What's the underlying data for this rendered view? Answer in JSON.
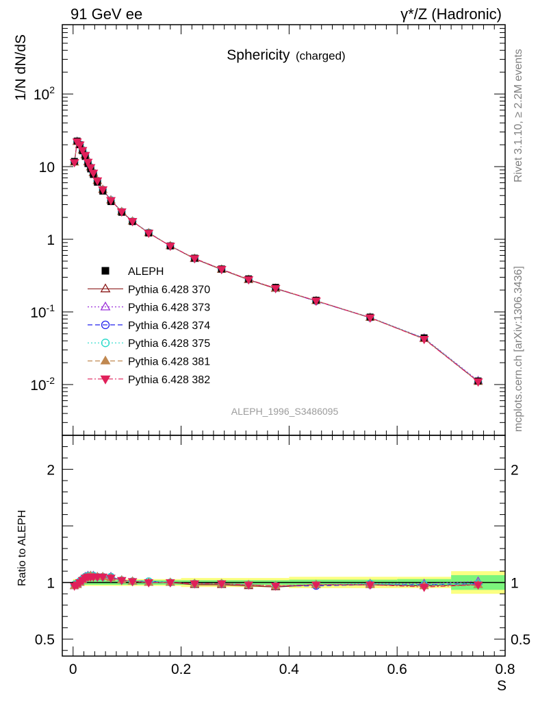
{
  "header": {
    "left": "91 GeV ee",
    "right": "γ*/Z (Hadronic)",
    "side_top": "Rivet 3.1.10, ≥ 2.2M events",
    "side_bottom": "mcplots.cern.ch [arXiv:1306.3436]"
  },
  "chart_data": {
    "type": "line",
    "title": "Sphericity",
    "title_suffix": "(charged)",
    "watermark": "ALEPH_1996_S3486095",
    "xlabel": "S",
    "ylabel": "1/N dN/dS",
    "ratio_ylabel": "Ratio to ALEPH",
    "xlim": [
      -0.02,
      0.8
    ],
    "ylim_log": [
      0.002,
      900
    ],
    "ratio_ylim": [
      0.35,
      2.3
    ],
    "yscale": "log",
    "x_ticks": [
      "0",
      "0.2",
      "0.4",
      "0.6",
      "0.8"
    ],
    "y_ticks": [
      {
        "base": "10",
        "exp": "-2"
      },
      {
        "base": "10",
        "exp": "-1"
      },
      {
        "base": "1",
        "exp": ""
      },
      {
        "base": "10",
        "exp": ""
      },
      {
        "base": "10",
        "exp": "2"
      }
    ],
    "ratio_ticks": [
      "0.5",
      "1",
      "2"
    ],
    "legend_position": "left",
    "x": [
      0.0025,
      0.0075,
      0.0125,
      0.0175,
      0.0225,
      0.0275,
      0.0325,
      0.0375,
      0.045,
      0.055,
      0.07,
      0.09,
      0.11,
      0.14,
      0.18,
      0.225,
      0.275,
      0.325,
      0.375,
      0.45,
      0.55,
      0.65,
      0.75
    ],
    "data": {
      "name": "ALEPH",
      "values": [
        11.8,
        22.5,
        20.0,
        16.5,
        13.8,
        11.0,
        9.3,
        7.8,
        6.1,
        4.6,
        3.3,
        2.35,
        1.75,
        1.22,
        0.81,
        0.55,
        0.39,
        0.285,
        0.218,
        0.145,
        0.085,
        0.044,
        0.0112
      ]
    },
    "series": [
      {
        "name": "Pythia 6.428 370",
        "color": "#8b1a1a",
        "style": "solid",
        "marker": "triangle-open",
        "ratio": [
          0.97,
          0.98,
          1.0,
          1.02,
          1.05,
          1.06,
          1.06,
          1.06,
          1.05,
          1.05,
          1.05,
          1.02,
          1.01,
          1.0,
          1.0,
          0.98,
          0.98,
          0.97,
          0.96,
          0.98,
          0.98,
          0.97,
          0.98
        ]
      },
      {
        "name": "Pythia 6.428 373",
        "color": "#9b30d9",
        "style": "dotted",
        "marker": "triangle-open",
        "ratio": [
          0.97,
          0.99,
          1.01,
          1.03,
          1.05,
          1.06,
          1.06,
          1.06,
          1.05,
          1.05,
          1.05,
          1.02,
          1.01,
          1.0,
          1.0,
          0.99,
          0.99,
          0.98,
          0.97,
          0.98,
          0.99,
          0.99,
          1.01
        ]
      },
      {
        "name": "Pythia 6.428 374",
        "color": "#2222ee",
        "style": "dashed",
        "marker": "circle-open",
        "ratio": [
          0.98,
          0.99,
          1.01,
          1.03,
          1.05,
          1.06,
          1.06,
          1.06,
          1.05,
          1.05,
          1.05,
          1.02,
          1.01,
          1.01,
          1.0,
          0.99,
          0.99,
          0.98,
          0.97,
          0.97,
          0.98,
          0.98,
          0.99
        ]
      },
      {
        "name": "Pythia 6.428 375",
        "color": "#20d8c8",
        "style": "dotted",
        "marker": "circle-open",
        "ratio": [
          0.98,
          0.99,
          1.01,
          1.03,
          1.05,
          1.06,
          1.06,
          1.06,
          1.05,
          1.05,
          1.05,
          1.02,
          1.01,
          1.01,
          1.0,
          0.99,
          0.99,
          0.98,
          0.97,
          0.98,
          0.99,
          0.98,
          0.99
        ]
      },
      {
        "name": "Pythia 6.428 381",
        "color": "#c08850",
        "style": "dashed",
        "marker": "triangle-filled",
        "ratio": [
          0.97,
          0.98,
          1.0,
          1.02,
          1.04,
          1.05,
          1.06,
          1.05,
          1.05,
          1.05,
          1.04,
          1.02,
          1.01,
          1.0,
          1.0,
          0.99,
          0.99,
          0.98,
          0.97,
          0.98,
          0.98,
          0.97,
          0.98
        ]
      },
      {
        "name": "Pythia 6.428 382",
        "color": "#e0205a",
        "style": "dashdot",
        "marker": "triangle-down-filled",
        "ratio": [
          0.97,
          0.98,
          1.0,
          1.02,
          1.04,
          1.05,
          1.05,
          1.05,
          1.05,
          1.05,
          1.04,
          1.02,
          1.01,
          1.0,
          1.0,
          0.99,
          0.99,
          0.98,
          0.97,
          0.98,
          0.98,
          0.96,
          0.98
        ]
      }
    ],
    "uncertainty_bands": {
      "inner_color": "#7cf57c",
      "outer_color": "#fbff82",
      "x_edges": [
        0.0,
        0.2,
        0.4,
        0.6,
        0.7,
        0.8
      ],
      "inner": [
        0.02,
        0.02,
        0.025,
        0.03,
        0.065
      ],
      "outer": [
        0.03,
        0.04,
        0.05,
        0.05,
        0.1
      ]
    }
  }
}
